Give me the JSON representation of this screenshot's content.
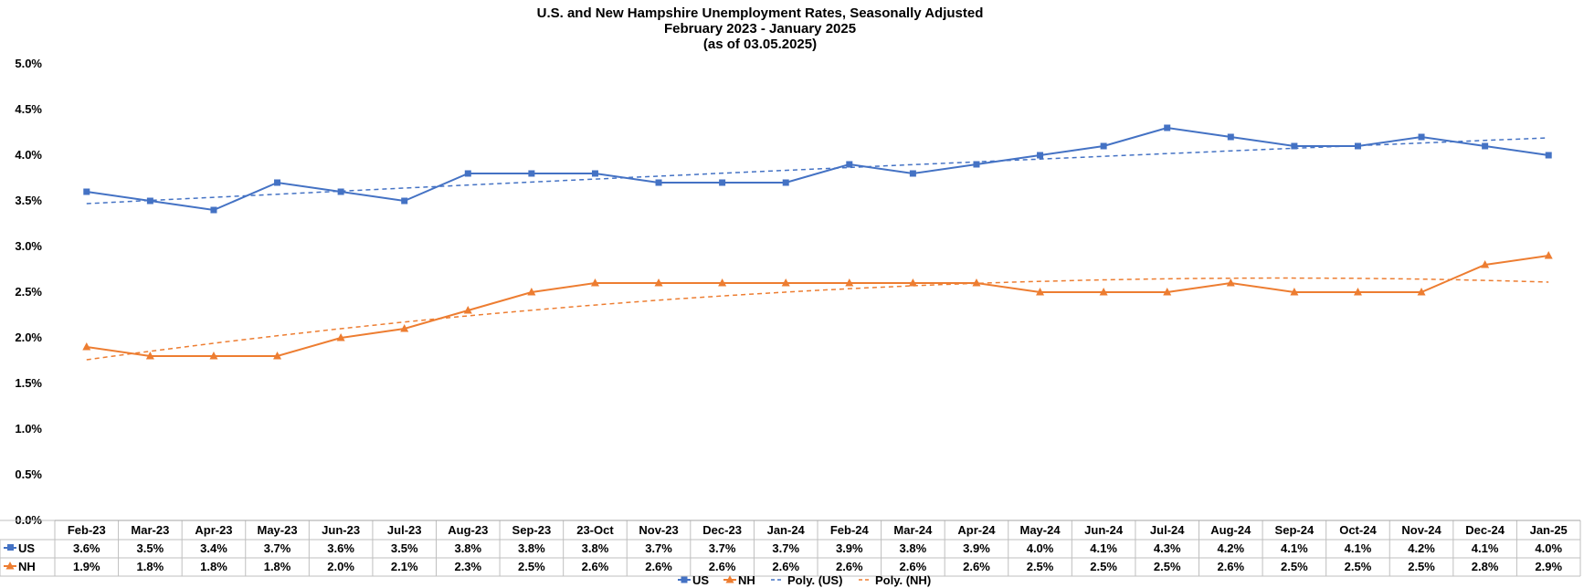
{
  "chart_data": {
    "type": "line",
    "title": "U.S. and New Hampshire Unemployment Rates, Seasonally Adjusted",
    "subtitle": "February 2023 - January 2025",
    "subtitle2": "(as of 03.05.2025)",
    "xlabel": "",
    "ylabel": "",
    "ylim": [
      0,
      5.0
    ],
    "y_ticks": [
      "0.0%",
      "0.5%",
      "1.0%",
      "1.5%",
      "2.0%",
      "2.5%",
      "3.0%",
      "3.5%",
      "4.0%",
      "4.5%",
      "5.0%"
    ],
    "grid": false,
    "legend_position": "bottom",
    "categories": [
      "Feb-23",
      "Mar-23",
      "Apr-23",
      "May-23",
      "Jun-23",
      "Jul-23",
      "Aug-23",
      "Sep-23",
      "23-Oct",
      "Nov-23",
      "Dec-23",
      "Jan-24",
      "Feb-24",
      "Mar-24",
      "Apr-24",
      "May-24",
      "Jun-24",
      "Jul-24",
      "Aug-24",
      "Sep-24",
      "Oct-24",
      "Nov-24",
      "Dec-24",
      "Jan-25"
    ],
    "series": [
      {
        "name": "US",
        "color": "#4472C4",
        "marker": "square",
        "values": [
          3.6,
          3.5,
          3.4,
          3.7,
          3.6,
          3.5,
          3.8,
          3.8,
          3.8,
          3.7,
          3.7,
          3.7,
          3.9,
          3.8,
          3.9,
          4.0,
          4.1,
          4.3,
          4.2,
          4.1,
          4.1,
          4.2,
          4.1,
          4.0
        ],
        "labels": [
          "3.6%",
          "3.5%",
          "3.4%",
          "3.7%",
          "3.6%",
          "3.5%",
          "3.8%",
          "3.8%",
          "3.8%",
          "3.7%",
          "3.7%",
          "3.7%",
          "3.9%",
          "3.8%",
          "3.9%",
          "4.0%",
          "4.1%",
          "4.3%",
          "4.2%",
          "4.1%",
          "4.1%",
          "4.2%",
          "4.1%",
          "4.0%"
        ]
      },
      {
        "name": "NH",
        "color": "#ED7D31",
        "marker": "triangle",
        "values": [
          1.9,
          1.8,
          1.8,
          1.8,
          2.0,
          2.1,
          2.3,
          2.5,
          2.6,
          2.6,
          2.6,
          2.6,
          2.6,
          2.6,
          2.6,
          2.5,
          2.5,
          2.5,
          2.6,
          2.5,
          2.5,
          2.5,
          2.8,
          2.9
        ],
        "labels": [
          "1.9%",
          "1.8%",
          "1.8%",
          "1.8%",
          "2.0%",
          "2.1%",
          "2.3%",
          "2.5%",
          "2.6%",
          "2.6%",
          "2.6%",
          "2.6%",
          "2.6%",
          "2.6%",
          "2.6%",
          "2.5%",
          "2.5%",
          "2.5%",
          "2.6%",
          "2.5%",
          "2.5%",
          "2.5%",
          "2.8%",
          "2.9%"
        ]
      }
    ],
    "trendlines": [
      {
        "name": "Poly. (US)",
        "of": "US",
        "color": "#4472C4",
        "start": 3.47,
        "mid": 3.85,
        "end": 4.19
      },
      {
        "name": "Poly. (NH)",
        "of": "NH",
        "color": "#ED7D31",
        "start": 1.76,
        "mid": 2.52,
        "end": 2.61
      }
    ]
  }
}
